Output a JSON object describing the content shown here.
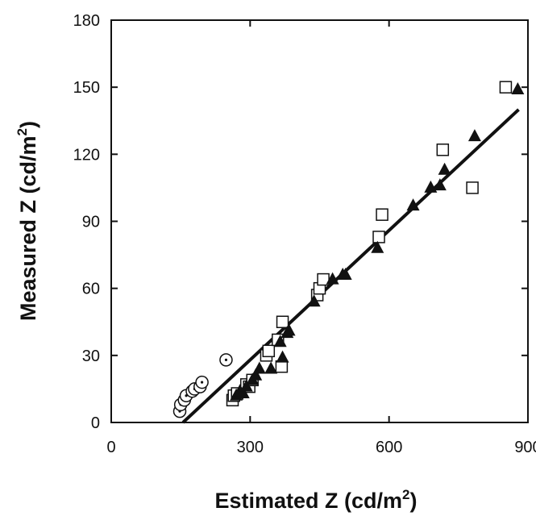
{
  "chart_data": {
    "type": "scatter",
    "xlabel": "Estimated Z (cd/m",
    "xlabel_sup": "2",
    "xlabel_end": ")",
    "ylabel": "Measured Z (cd/m",
    "ylabel_sup": "2",
    "ylabel_end": ")",
    "xlim": [
      0,
      900
    ],
    "ylim": [
      0,
      180
    ],
    "xticks": [
      0,
      300,
      600,
      900
    ],
    "yticks": [
      0,
      30,
      60,
      90,
      120,
      150,
      180
    ],
    "grid": false,
    "legend": "none",
    "series": [
      {
        "marker": "circle-dot",
        "points": [
          [
            148,
            5
          ],
          [
            150,
            8
          ],
          [
            158,
            10
          ],
          [
            162,
            12
          ],
          [
            175,
            14
          ],
          [
            180,
            15
          ],
          [
            192,
            16
          ],
          [
            196,
            18
          ],
          [
            248,
            28
          ]
        ]
      },
      {
        "marker": "open-square",
        "points": [
          [
            262,
            10
          ],
          [
            265,
            12
          ],
          [
            272,
            13
          ],
          [
            292,
            17
          ],
          [
            298,
            16
          ],
          [
            305,
            19
          ],
          [
            335,
            30
          ],
          [
            340,
            32
          ],
          [
            360,
            37
          ],
          [
            368,
            25
          ],
          [
            370,
            45
          ],
          [
            445,
            57
          ],
          [
            450,
            60
          ],
          [
            458,
            64
          ],
          [
            578,
            83
          ],
          [
            585,
            93
          ],
          [
            716,
            122
          ],
          [
            780,
            105
          ],
          [
            852,
            150
          ]
        ]
      },
      {
        "marker": "filled-triangle",
        "points": [
          [
            270,
            12
          ],
          [
            278,
            14
          ],
          [
            285,
            13
          ],
          [
            292,
            16
          ],
          [
            305,
            19
          ],
          [
            312,
            21
          ],
          [
            320,
            24
          ],
          [
            345,
            24
          ],
          [
            365,
            36
          ],
          [
            370,
            29
          ],
          [
            380,
            40
          ],
          [
            384,
            41
          ],
          [
            438,
            54
          ],
          [
            478,
            64
          ],
          [
            500,
            66
          ],
          [
            506,
            66
          ],
          [
            575,
            78
          ],
          [
            652,
            97
          ],
          [
            690,
            105
          ],
          [
            710,
            106
          ],
          [
            720,
            113
          ],
          [
            785,
            128
          ],
          [
            878,
            149
          ]
        ]
      }
    ],
    "fit_line": {
      "x": [
        155,
        880
      ],
      "y": [
        0,
        140
      ]
    }
  }
}
